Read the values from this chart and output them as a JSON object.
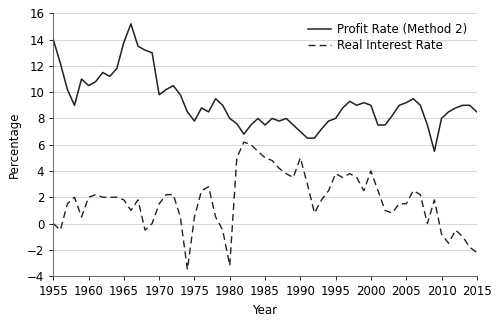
{
  "xlabel": "Year",
  "ylabel": "Percentage",
  "xlim": [
    1955,
    2015
  ],
  "ylim": [
    -4,
    16
  ],
  "yticks": [
    -4,
    -2,
    0,
    2,
    4,
    6,
    8,
    10,
    12,
    14,
    16
  ],
  "xticks": [
    1955,
    1960,
    1965,
    1970,
    1975,
    1980,
    1985,
    1990,
    1995,
    2000,
    2005,
    2010,
    2015
  ],
  "profit_rate": {
    "years": [
      1955,
      1956,
      1957,
      1958,
      1959,
      1960,
      1961,
      1962,
      1963,
      1964,
      1965,
      1966,
      1967,
      1968,
      1969,
      1970,
      1971,
      1972,
      1973,
      1974,
      1975,
      1976,
      1977,
      1978,
      1979,
      1980,
      1981,
      1982,
      1983,
      1984,
      1985,
      1986,
      1987,
      1988,
      1989,
      1990,
      1991,
      1992,
      1993,
      1994,
      1995,
      1996,
      1997,
      1998,
      1999,
      2000,
      2001,
      2002,
      2003,
      2004,
      2005,
      2006,
      2007,
      2008,
      2009,
      2010,
      2011,
      2012,
      2013,
      2014,
      2015
    ],
    "values": [
      14.0,
      12.2,
      10.2,
      9.0,
      11.0,
      10.5,
      10.8,
      11.5,
      11.2,
      11.8,
      13.8,
      15.2,
      13.5,
      13.2,
      13.0,
      9.8,
      10.2,
      10.5,
      9.8,
      8.5,
      7.8,
      8.8,
      8.5,
      9.5,
      9.0,
      8.0,
      7.6,
      6.8,
      7.5,
      8.0,
      7.5,
      8.0,
      7.8,
      8.0,
      7.5,
      7.0,
      6.5,
      6.5,
      7.2,
      7.8,
      8.0,
      8.8,
      9.3,
      9.0,
      9.2,
      9.0,
      7.5,
      7.5,
      8.2,
      9.0,
      9.2,
      9.5,
      9.0,
      7.5,
      5.5,
      8.0,
      8.5,
      8.8,
      9.0,
      9.0,
      8.5
    ]
  },
  "real_interest_rate": {
    "years": [
      1955,
      1956,
      1957,
      1958,
      1959,
      1960,
      1961,
      1962,
      1963,
      1964,
      1965,
      1966,
      1967,
      1968,
      1969,
      1970,
      1971,
      1972,
      1973,
      1974,
      1975,
      1976,
      1977,
      1978,
      1979,
      1980,
      1981,
      1982,
      1983,
      1984,
      1985,
      1986,
      1987,
      1988,
      1989,
      1990,
      1991,
      1992,
      1993,
      1994,
      1995,
      1996,
      1997,
      1998,
      1999,
      2000,
      2001,
      2002,
      2003,
      2004,
      2005,
      2006,
      2007,
      2008,
      2009,
      2010,
      2011,
      2012,
      2013,
      2014,
      2015
    ],
    "values": [
      0.0,
      -0.5,
      1.5,
      2.0,
      0.5,
      2.0,
      2.2,
      2.0,
      2.0,
      2.0,
      1.8,
      1.0,
      1.8,
      -0.5,
      0.0,
      1.5,
      2.2,
      2.2,
      0.5,
      -3.5,
      0.5,
      2.5,
      2.8,
      0.5,
      -0.5,
      -3.2,
      5.0,
      6.2,
      6.0,
      5.5,
      5.0,
      4.8,
      4.2,
      3.8,
      3.5,
      5.0,
      3.0,
      0.8,
      1.8,
      2.5,
      3.8,
      3.5,
      3.8,
      3.5,
      2.5,
      4.0,
      2.5,
      1.0,
      0.8,
      1.5,
      1.5,
      2.5,
      2.2,
      0.0,
      1.8,
      -0.8,
      -1.5,
      -0.5,
      -1.0,
      -1.8,
      -2.2
    ]
  },
  "line_color": "#222222",
  "background_color": "#ffffff",
  "legend_loc": "upper right",
  "fontsize": 8.5,
  "legend_fontsize": 8.5
}
